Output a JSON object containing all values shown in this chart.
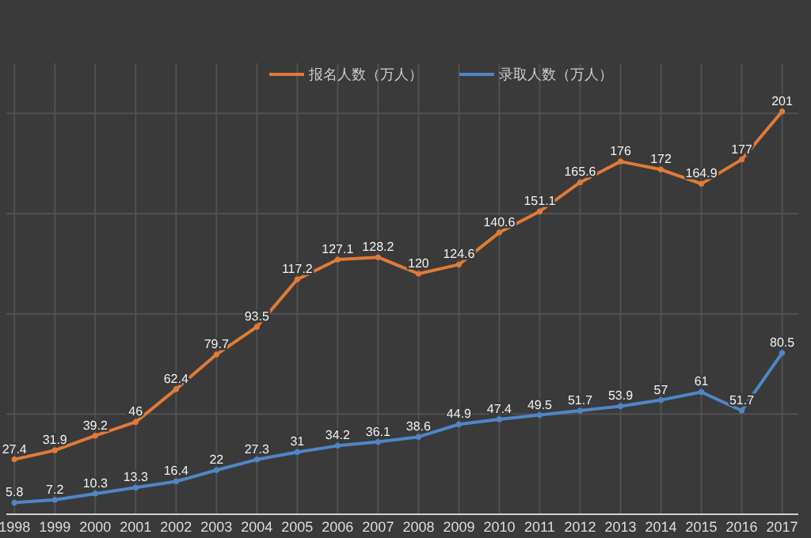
{
  "chart_data": {
    "type": "line",
    "categories": [
      "1998",
      "1999",
      "2000",
      "2001",
      "2002",
      "2003",
      "2004",
      "2005",
      "2006",
      "2007",
      "2008",
      "2009",
      "2010",
      "2011",
      "2012",
      "2013",
      "2014",
      "2015",
      "2016",
      "2017"
    ],
    "ylim": [
      0,
      225
    ],
    "grid": true,
    "legend": "top",
    "data_labels": true,
    "marker": "circle",
    "series": [
      {
        "name": "报名人数（万人）",
        "color": "#e07b39",
        "values": [
          27.4,
          31.9,
          39.2,
          46,
          62.4,
          79.7,
          93.5,
          117.2,
          127.1,
          128.2,
          120,
          124.6,
          140.6,
          151.1,
          165.6,
          176,
          172,
          164.9,
          177,
          201
        ]
      },
      {
        "name": "录取人数（万人）",
        "color": "#4f86c6",
        "values": [
          5.8,
          7.2,
          10.3,
          13.3,
          16.4,
          22,
          27.3,
          31,
          34.2,
          36.1,
          38.6,
          44.9,
          47.4,
          49.5,
          51.7,
          53.9,
          57,
          61,
          51.7,
          80.5
        ]
      }
    ]
  }
}
